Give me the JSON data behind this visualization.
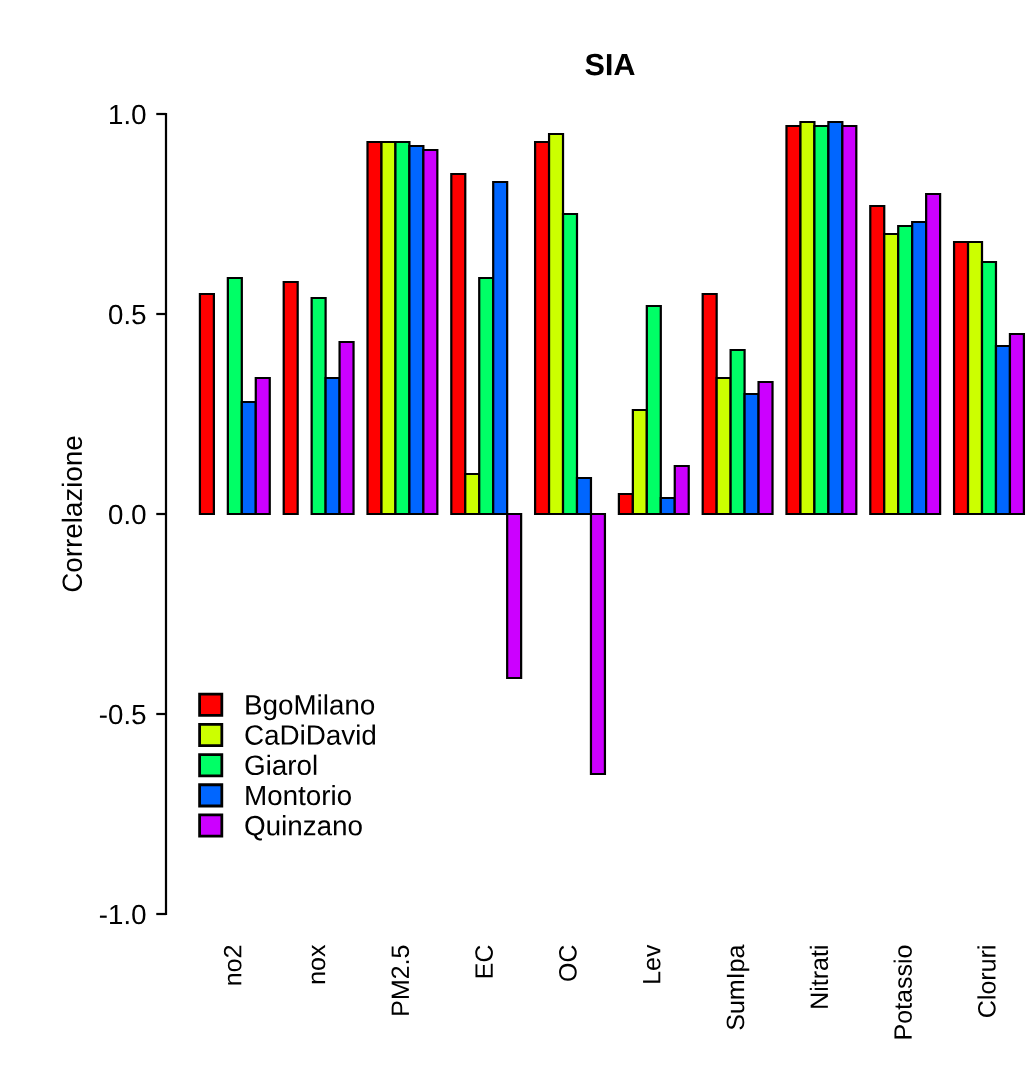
{
  "chart_data": {
    "type": "bar",
    "title": "SIA",
    "ylabel": "Correlazione",
    "categories": [
      "no2",
      "nox",
      "PM2.5",
      "EC",
      "OC",
      "Lev",
      "SumIpa",
      "Nitrati",
      "Potassio",
      "Cloruri"
    ],
    "series": [
      {
        "name": "BgoMilano",
        "color": "#ff0000",
        "values": [
          0.55,
          0.58,
          0.93,
          0.85,
          0.93,
          0.05,
          0.55,
          0.97,
          0.77,
          0.68
        ]
      },
      {
        "name": "CaDiDavid",
        "color": "#ccff00",
        "values": [
          null,
          null,
          0.93,
          0.1,
          0.95,
          0.26,
          0.34,
          0.98,
          0.7,
          0.68
        ]
      },
      {
        "name": "Giarol",
        "color": "#00ff66",
        "values": [
          0.59,
          0.54,
          0.93,
          0.59,
          0.75,
          0.52,
          0.41,
          0.97,
          0.72,
          0.63
        ]
      },
      {
        "name": "Montorio",
        "color": "#0066ff",
        "values": [
          0.28,
          0.34,
          0.92,
          0.83,
          0.09,
          0.04,
          0.3,
          0.98,
          0.73,
          0.42
        ]
      },
      {
        "name": "Quinzano",
        "color": "#cc00ff",
        "values": [
          0.34,
          0.43,
          0.91,
          -0.41,
          -0.65,
          0.12,
          0.33,
          0.97,
          0.8,
          0.45
        ]
      }
    ],
    "ylim": [
      -1.0,
      1.0
    ],
    "yticks": [
      {
        "value": -1,
        "label": "-1.0"
      },
      {
        "value": -0.5,
        "label": "-0.5"
      },
      {
        "value": 0,
        "label": "0.0"
      },
      {
        "value": 0.5,
        "label": "0.5"
      },
      {
        "value": 1,
        "label": "1.0"
      }
    ],
    "legend": "bottom left",
    "grid": false
  }
}
